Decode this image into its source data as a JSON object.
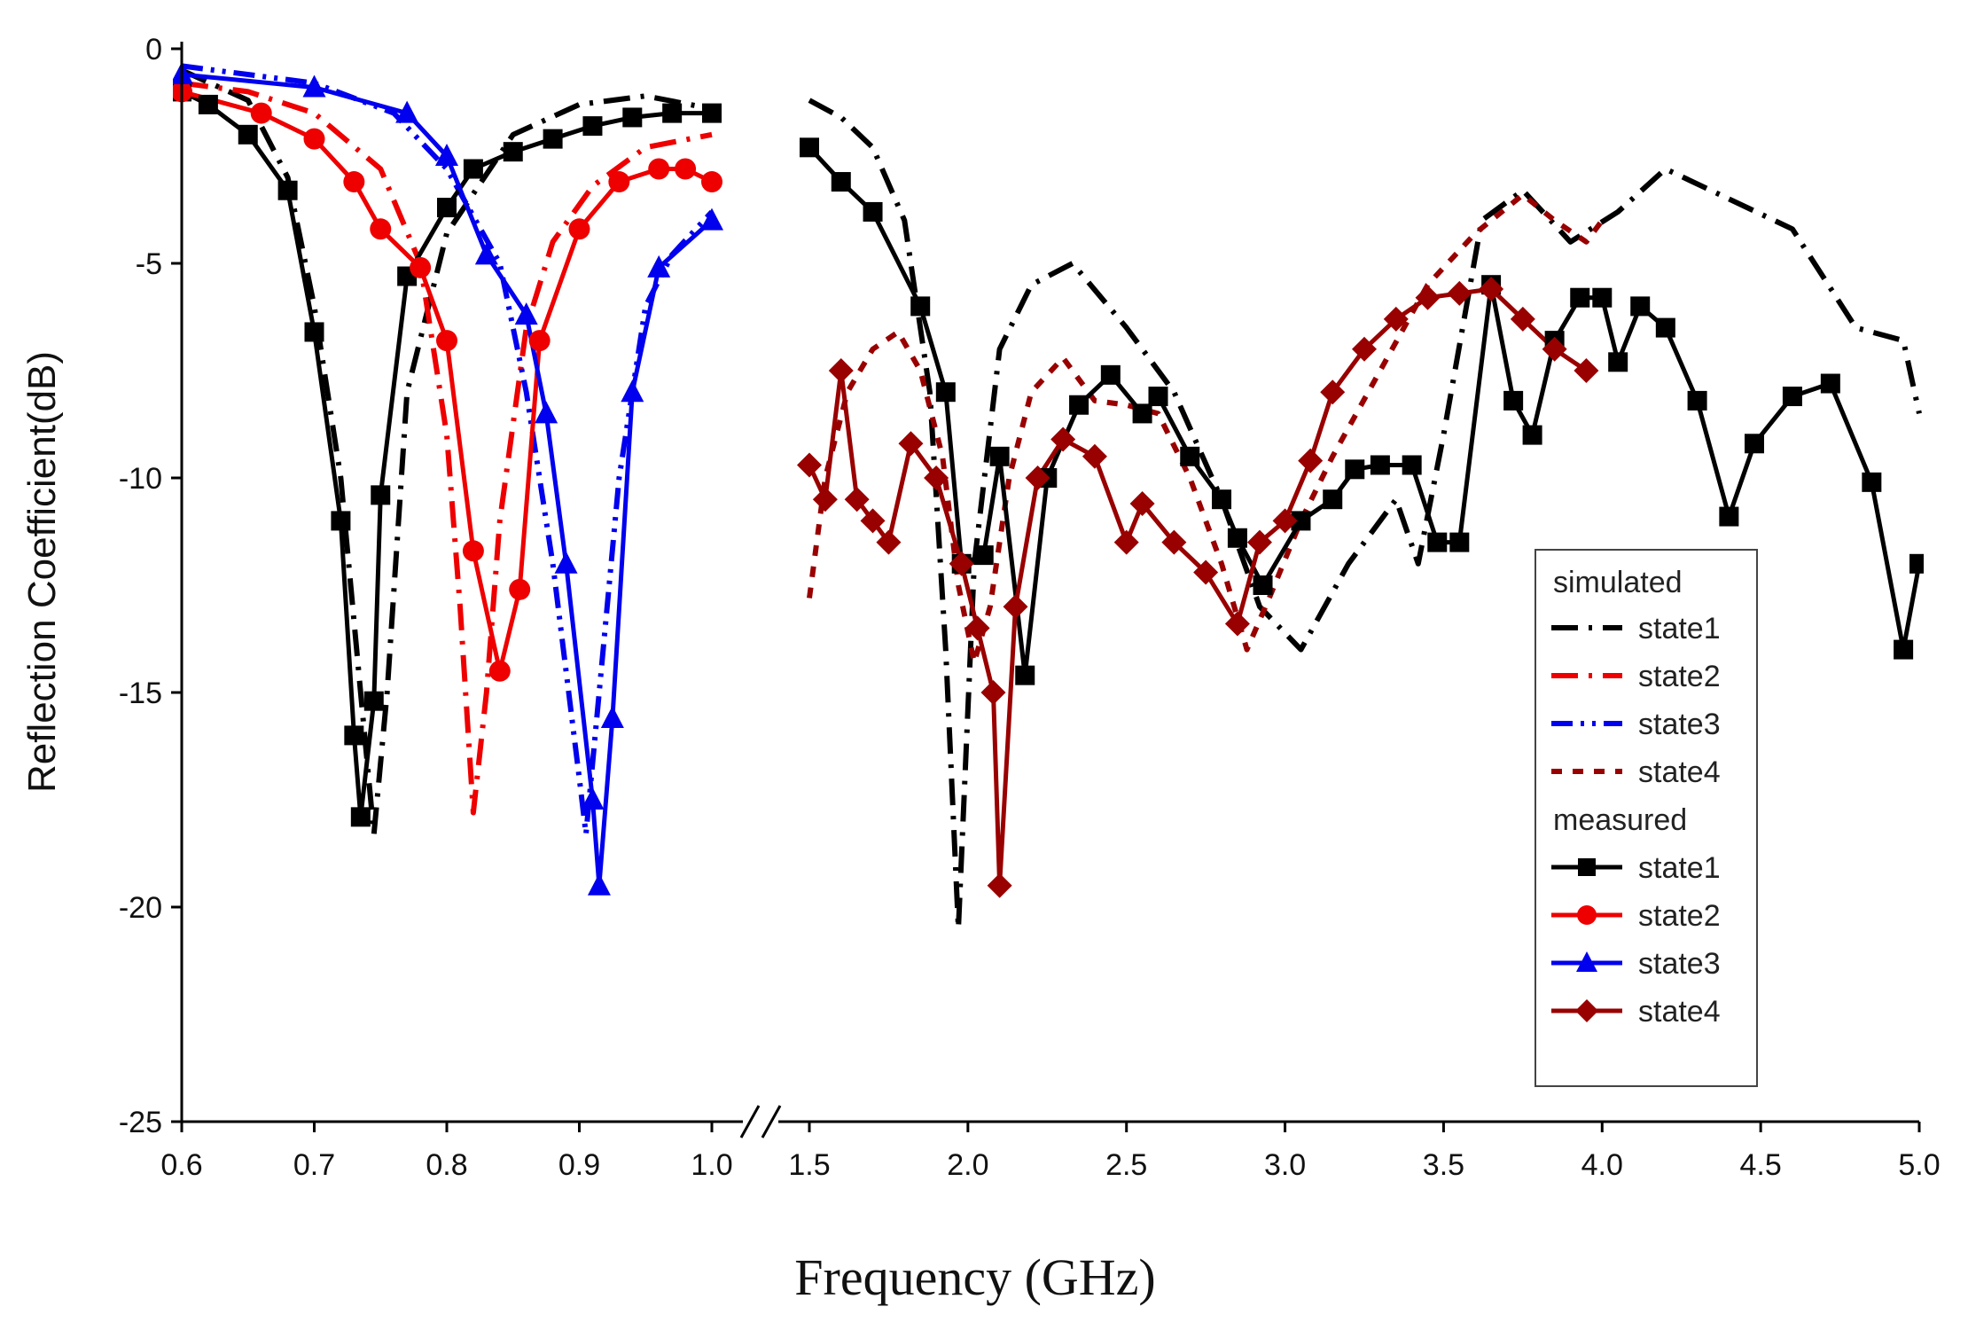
{
  "chart_data": {
    "type": "line",
    "title": "",
    "xlabel": "Frequency (GHz)",
    "ylabel": "Reflection Coefficient(dB)",
    "ylim": [
      -25,
      0
    ],
    "y_ticks": [
      "0",
      "-5",
      "-10",
      "-15",
      "-20",
      "-25"
    ],
    "x_segments": [
      {
        "xlim": [
          0.6,
          1.0
        ],
        "ticks": [
          "0.6",
          "0.7",
          "0.8",
          "0.9",
          "1.0"
        ]
      },
      {
        "xlim": [
          1.5,
          5.0
        ],
        "ticks": [
          "1.5",
          "2.0",
          "2.5",
          "3.0",
          "3.5",
          "4.0",
          "4.5",
          "5.0"
        ]
      }
    ],
    "axis_break": "between 1.0 and 1.5 GHz",
    "legend": {
      "placement": "bottom-right",
      "group_simulated": "simulated",
      "group_measured": "measured"
    },
    "series": [
      {
        "group": "simulated",
        "name": "state1",
        "color": "#000000",
        "style": "dash-dot",
        "marker": "none",
        "segments": [
          [
            [
              0.6,
              -0.5
            ],
            [
              0.65,
              -1.2
            ],
            [
              0.68,
              -3
            ],
            [
              0.7,
              -6
            ],
            [
              0.72,
              -10
            ],
            [
              0.735,
              -15
            ],
            [
              0.745,
              -18.3
            ],
            [
              0.755,
              -15
            ],
            [
              0.77,
              -8
            ],
            [
              0.8,
              -4.3
            ],
            [
              0.85,
              -2
            ],
            [
              0.9,
              -1.3
            ],
            [
              0.95,
              -1.1
            ],
            [
              1.0,
              -1.4
            ]
          ],
          [
            [
              1.5,
              -1.2
            ],
            [
              1.6,
              -1.6
            ],
            [
              1.7,
              -2.3
            ],
            [
              1.8,
              -4
            ],
            [
              1.88,
              -8
            ],
            [
              1.93,
              -14
            ],
            [
              1.97,
              -20.5
            ],
            [
              2.02,
              -12
            ],
            [
              2.1,
              -7
            ],
            [
              2.2,
              -5.5
            ],
            [
              2.33,
              -5
            ],
            [
              2.5,
              -6.5
            ],
            [
              2.65,
              -8
            ],
            [
              2.8,
              -10.5
            ],
            [
              2.92,
              -13
            ],
            [
              3.05,
              -14
            ],
            [
              3.2,
              -12
            ],
            [
              3.35,
              -10.5
            ],
            [
              3.42,
              -12
            ],
            [
              3.5,
              -9
            ],
            [
              3.62,
              -4
            ],
            [
              3.75,
              -3.3
            ],
            [
              3.9,
              -4.5
            ],
            [
              4.05,
              -3.8
            ],
            [
              4.2,
              -2.8
            ],
            [
              4.4,
              -3.5
            ],
            [
              4.6,
              -4.2
            ],
            [
              4.8,
              -6.5
            ],
            [
              4.95,
              -6.8
            ],
            [
              5.0,
              -8.5
            ]
          ]
        ]
      },
      {
        "group": "simulated",
        "name": "state2",
        "color": "#ee0000",
        "style": "dash-dot",
        "marker": "none",
        "segments": [
          [
            [
              0.6,
              -0.8
            ],
            [
              0.65,
              -1
            ],
            [
              0.7,
              -1.5
            ],
            [
              0.75,
              -2.8
            ],
            [
              0.78,
              -5
            ],
            [
              0.8,
              -9
            ],
            [
              0.81,
              -13
            ],
            [
              0.82,
              -17.8
            ],
            [
              0.83,
              -15
            ],
            [
              0.84,
              -11
            ],
            [
              0.86,
              -6.5
            ],
            [
              0.88,
              -4.5
            ],
            [
              0.91,
              -3.2
            ],
            [
              0.95,
              -2.3
            ],
            [
              1.0,
              -2
            ]
          ]
        ]
      },
      {
        "group": "simulated",
        "name": "state3",
        "color": "#0000ee",
        "style": "dash-dot-dot",
        "marker": "none",
        "segments": [
          [
            [
              0.6,
              -0.4
            ],
            [
              0.7,
              -0.8
            ],
            [
              0.76,
              -1.5
            ],
            [
              0.8,
              -2.8
            ],
            [
              0.84,
              -5
            ],
            [
              0.86,
              -8
            ],
            [
              0.88,
              -12
            ],
            [
              0.9,
              -17
            ],
            [
              0.905,
              -18.3
            ],
            [
              0.915,
              -15
            ],
            [
              0.93,
              -10
            ],
            [
              0.95,
              -6
            ],
            [
              0.97,
              -4.8
            ],
            [
              1.0,
              -3.8
            ]
          ]
        ]
      },
      {
        "group": "simulated",
        "name": "state4",
        "color": "#990000",
        "style": "dot",
        "marker": "none",
        "segments": [
          [
            [
              1.5,
              -12.8
            ],
            [
              1.55,
              -10
            ],
            [
              1.62,
              -8
            ],
            [
              1.7,
              -7
            ],
            [
              1.78,
              -6.6
            ],
            [
              1.85,
              -7.5
            ],
            [
              1.92,
              -9.5
            ],
            [
              1.97,
              -12.5
            ],
            [
              2.02,
              -14.3
            ],
            [
              2.07,
              -13
            ],
            [
              2.13,
              -10
            ],
            [
              2.2,
              -8
            ],
            [
              2.3,
              -7.2
            ],
            [
              2.4,
              -8.2
            ],
            [
              2.5,
              -8.3
            ],
            [
              2.6,
              -8.5
            ],
            [
              2.7,
              -10
            ],
            [
              2.8,
              -12
            ],
            [
              2.88,
              -14
            ],
            [
              2.95,
              -12.8
            ],
            [
              3.05,
              -11
            ],
            [
              3.15,
              -9.5
            ],
            [
              3.3,
              -7.5
            ],
            [
              3.45,
              -5.5
            ],
            [
              3.6,
              -4.3
            ],
            [
              3.75,
              -3.4
            ],
            [
              3.85,
              -4
            ],
            [
              3.95,
              -4.5
            ],
            [
              4.0,
              -4
            ]
          ]
        ]
      },
      {
        "group": "measured",
        "name": "state1",
        "color": "#000000",
        "style": "solid",
        "marker": "square",
        "segments": [
          [
            [
              0.6,
              -1
            ],
            [
              0.62,
              -1.3
            ],
            [
              0.65,
              -2
            ],
            [
              0.68,
              -3.3
            ],
            [
              0.7,
              -6.6
            ],
            [
              0.72,
              -11
            ],
            [
              0.73,
              -16
            ],
            [
              0.735,
              -17.9
            ],
            [
              0.745,
              -15.2
            ],
            [
              0.75,
              -10.4
            ],
            [
              0.77,
              -5.3
            ],
            [
              0.8,
              -3.7
            ],
            [
              0.82,
              -2.8
            ],
            [
              0.85,
              -2.4
            ],
            [
              0.88,
              -2.1
            ],
            [
              0.91,
              -1.8
            ],
            [
              0.94,
              -1.6
            ],
            [
              0.97,
              -1.5
            ],
            [
              1.0,
              -1.5
            ]
          ],
          [
            [
              1.5,
              -2.3
            ],
            [
              1.6,
              -3.1
            ],
            [
              1.7,
              -3.8
            ],
            [
              1.85,
              -6
            ],
            [
              1.93,
              -8
            ],
            [
              1.98,
              -12
            ],
            [
              2.05,
              -11.8
            ],
            [
              2.1,
              -9.5
            ],
            [
              2.18,
              -14.6
            ],
            [
              2.25,
              -10
            ],
            [
              2.35,
              -8.3
            ],
            [
              2.45,
              -7.6
            ],
            [
              2.55,
              -8.5
            ],
            [
              2.6,
              -8.1
            ],
            [
              2.7,
              -9.5
            ],
            [
              2.8,
              -10.5
            ],
            [
              2.85,
              -11.4
            ],
            [
              2.93,
              -12.5
            ],
            [
              3.05,
              -11
            ],
            [
              3.15,
              -10.5
            ],
            [
              3.22,
              -9.8
            ],
            [
              3.3,
              -9.7
            ],
            [
              3.4,
              -9.7
            ],
            [
              3.48,
              -11.5
            ],
            [
              3.55,
              -11.5
            ],
            [
              3.65,
              -5.5
            ],
            [
              3.72,
              -8.2
            ],
            [
              3.78,
              -9
            ],
            [
              3.85,
              -6.8
            ],
            [
              3.93,
              -5.8
            ],
            [
              4.0,
              -5.8
            ],
            [
              4.05,
              -7.3
            ],
            [
              4.12,
              -6
            ],
            [
              4.2,
              -6.5
            ],
            [
              4.3,
              -8.2
            ],
            [
              4.4,
              -10.9
            ],
            [
              4.48,
              -9.2
            ],
            [
              4.6,
              -8.1
            ],
            [
              4.72,
              -7.8
            ],
            [
              4.85,
              -10.1
            ],
            [
              4.95,
              -14
            ],
            [
              5.0,
              -12
            ]
          ]
        ]
      },
      {
        "group": "measured",
        "name": "state2",
        "color": "#ee0000",
        "style": "solid",
        "marker": "circle",
        "segments": [
          [
            [
              0.6,
              -1
            ],
            [
              0.66,
              -1.5
            ],
            [
              0.7,
              -2.1
            ],
            [
              0.73,
              -3.1
            ],
            [
              0.75,
              -4.2
            ],
            [
              0.78,
              -5.1
            ],
            [
              0.8,
              -6.8
            ],
            [
              0.82,
              -11.7
            ],
            [
              0.84,
              -14.5
            ],
            [
              0.855,
              -12.6
            ],
            [
              0.87,
              -6.8
            ],
            [
              0.9,
              -4.2
            ],
            [
              0.93,
              -3.1
            ],
            [
              0.96,
              -2.8
            ],
            [
              0.98,
              -2.8
            ],
            [
              1.0,
              -3.1
            ]
          ]
        ]
      },
      {
        "group": "measured",
        "name": "state3",
        "color": "#0000ee",
        "style": "solid",
        "marker": "triangle",
        "segments": [
          [
            [
              0.6,
              -0.6
            ],
            [
              0.7,
              -0.9
            ],
            [
              0.77,
              -1.5
            ],
            [
              0.8,
              -2.5
            ],
            [
              0.83,
              -4.8
            ],
            [
              0.86,
              -6.2
            ],
            [
              0.875,
              -8.5
            ],
            [
              0.89,
              -12
            ],
            [
              0.91,
              -17.5
            ],
            [
              0.915,
              -19.5
            ],
            [
              0.925,
              -15.6
            ],
            [
              0.94,
              -8
            ],
            [
              0.96,
              -5.1
            ],
            [
              1.0,
              -4
            ]
          ]
        ]
      },
      {
        "group": "measured",
        "name": "state4",
        "color": "#990000",
        "style": "solid",
        "marker": "diamond",
        "segments": [
          [
            [
              1.5,
              -9.7
            ],
            [
              1.55,
              -10.5
            ],
            [
              1.6,
              -7.5
            ],
            [
              1.65,
              -10.5
            ],
            [
              1.7,
              -11
            ],
            [
              1.75,
              -11.5
            ],
            [
              1.82,
              -9.2
            ],
            [
              1.9,
              -10
            ],
            [
              1.98,
              -12
            ],
            [
              2.03,
              -13.5
            ],
            [
              2.08,
              -15
            ],
            [
              2.1,
              -19.5
            ],
            [
              2.15,
              -13
            ],
            [
              2.22,
              -10
            ],
            [
              2.3,
              -9.1
            ],
            [
              2.4,
              -9.5
            ],
            [
              2.5,
              -11.5
            ],
            [
              2.55,
              -10.6
            ],
            [
              2.65,
              -11.5
            ],
            [
              2.75,
              -12.2
            ],
            [
              2.85,
              -13.4
            ],
            [
              2.92,
              -11.5
            ],
            [
              3.0,
              -11
            ],
            [
              3.08,
              -9.6
            ],
            [
              3.15,
              -8
            ],
            [
              3.25,
              -7
            ],
            [
              3.35,
              -6.3
            ],
            [
              3.45,
              -5.8
            ],
            [
              3.55,
              -5.7
            ],
            [
              3.65,
              -5.6
            ],
            [
              3.75,
              -6.3
            ],
            [
              3.85,
              -7
            ],
            [
              3.95,
              -7.5
            ]
          ]
        ]
      }
    ]
  }
}
